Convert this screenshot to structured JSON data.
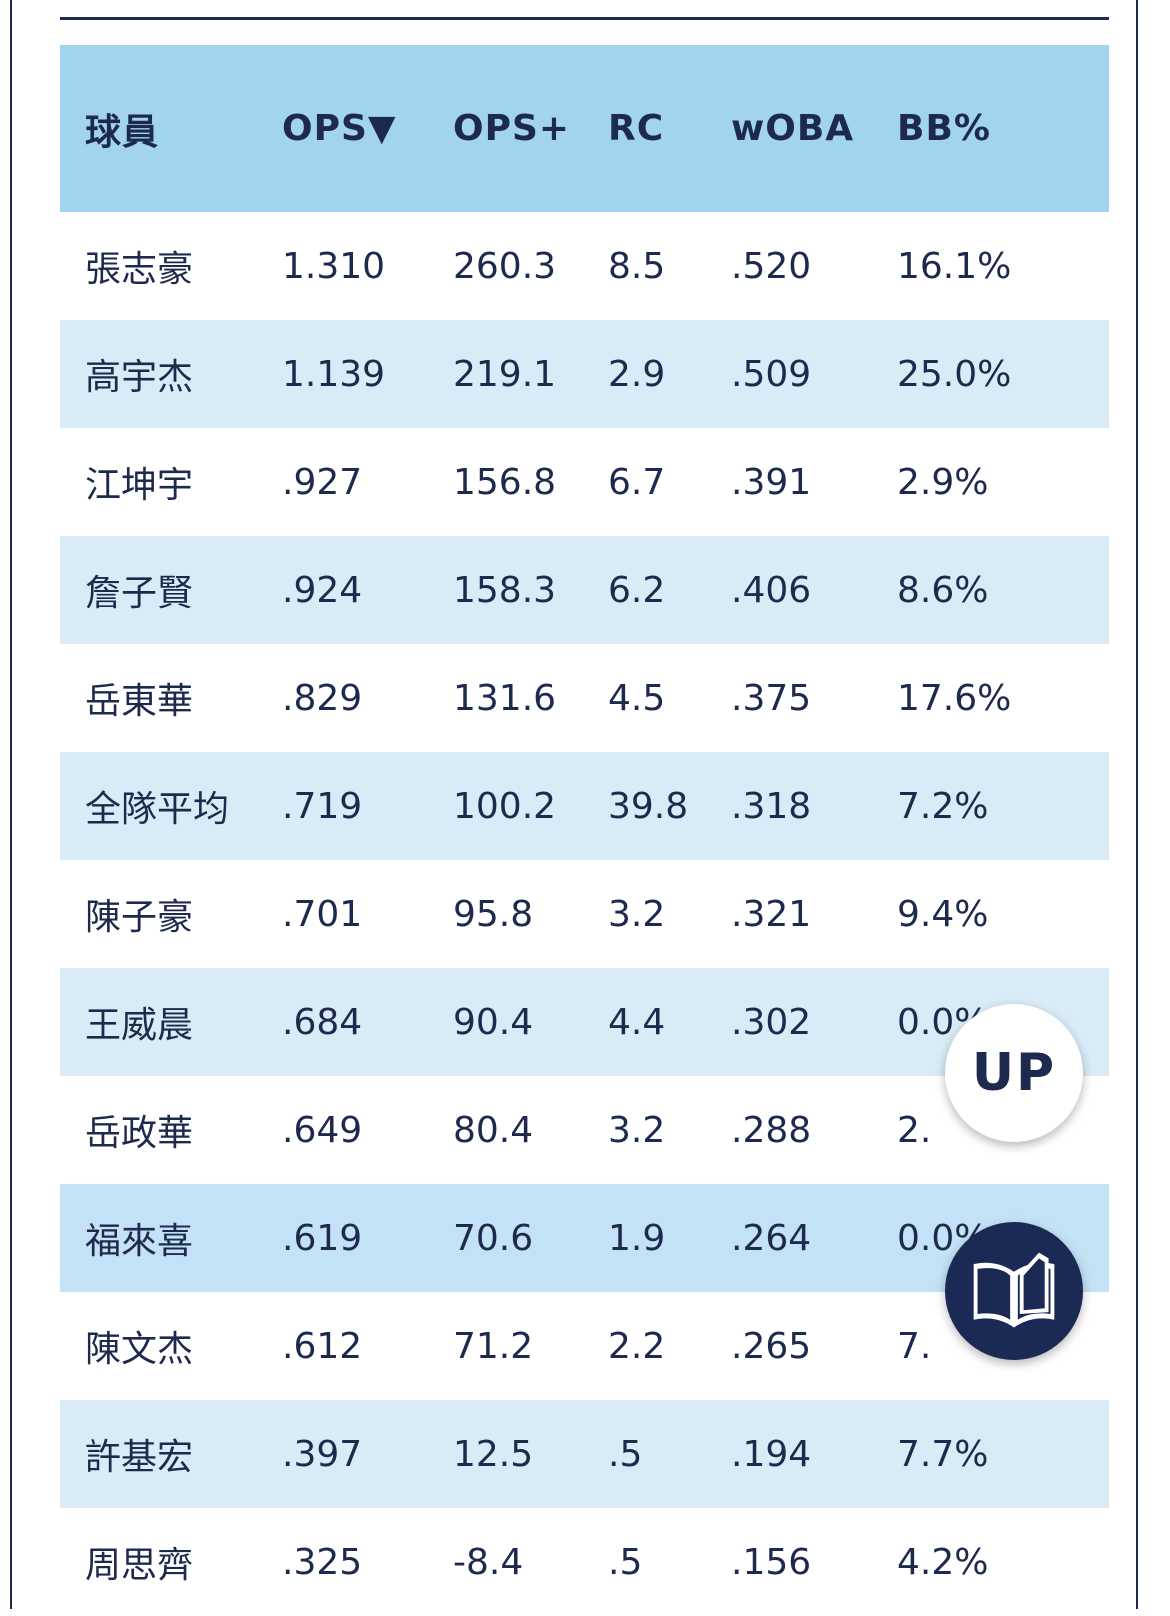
{
  "table": {
    "columns": [
      "球員",
      "OPS▼",
      "OPS+",
      "RC",
      "wOBA",
      "BB%"
    ],
    "rows": [
      [
        "張志豪",
        "1.310",
        "260.3",
        "8.5",
        ".520",
        "16.1%"
      ],
      [
        "高宇杰",
        "1.139",
        "219.1",
        "2.9",
        ".509",
        "25.0%"
      ],
      [
        "江坤宇",
        ".927",
        "156.8",
        "6.7",
        ".391",
        "2.9%"
      ],
      [
        "詹子賢",
        ".924",
        "158.3",
        "6.2",
        ".406",
        "8.6%"
      ],
      [
        "岳東華",
        ".829",
        "131.6",
        "4.5",
        ".375",
        "17.6%"
      ],
      [
        "全隊平均",
        ".719",
        "100.2",
        "39.8",
        ".318",
        "7.2%"
      ],
      [
        "陳子豪",
        ".701",
        "95.8",
        "3.2",
        ".321",
        "9.4%"
      ],
      [
        "王威晨",
        ".684",
        "90.4",
        "4.4",
        ".302",
        "0.0%"
      ],
      [
        "岳政華",
        ".649",
        "80.4",
        "3.2",
        ".288",
        "2."
      ],
      [
        "福來喜",
        ".619",
        "70.6",
        "1.9",
        ".264",
        "0.0%"
      ],
      [
        "陳文杰",
        ".612",
        "71.2",
        "2.2",
        ".265",
        "7."
      ],
      [
        "許基宏",
        ".397",
        "12.5",
        ".5",
        ".194",
        "7.7%"
      ],
      [
        "周思齊",
        ".325",
        "-8.4",
        ".5",
        ".156",
        "4.2%"
      ]
    ],
    "highlight_row": 9
  },
  "fab_up": {
    "label": "UP",
    "icon": "arrow-up-text"
  },
  "fab_book": {
    "icon": "open-book-icon"
  },
  "colors": {
    "header_bg": "#a2d4ef",
    "row_alt_bg": "#d8ebf6",
    "text": "#1d2a4d",
    "fab_dark": "#1a2a55"
  }
}
